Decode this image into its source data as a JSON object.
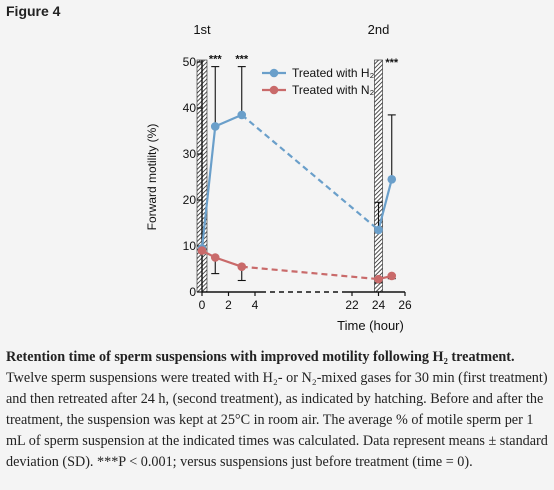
{
  "figure": {
    "label": "Figure 4"
  },
  "chart_data": {
    "type": "line",
    "xlabel": "Time (hour)",
    "ylabel": "Forward motility (%)",
    "ylim": [
      0,
      50
    ],
    "yticks": [
      0,
      10,
      20,
      30,
      40,
      50
    ],
    "xticks": [
      "0",
      "2",
      "4",
      "22",
      "24",
      "26"
    ],
    "phase_labels": [
      "1st",
      "2nd"
    ],
    "legend": [
      "Treated with H₂",
      "Treated with N₂"
    ],
    "legend_position": "top-right",
    "significance": "***",
    "colors": {
      "h2": "#6a9fca",
      "n2": "#c96a6a",
      "axis": "#111111"
    },
    "series": [
      {
        "name": "Treated with H₂",
        "x": [
          0,
          1,
          3,
          24,
          25
        ],
        "y": [
          9.5,
          36,
          38.5,
          13.5,
          24.5
        ],
        "error": [
          null,
          13,
          10.5,
          6,
          14
        ]
      },
      {
        "name": "Treated with N₂",
        "x": [
          0,
          1,
          3,
          24,
          25
        ],
        "y": [
          9,
          7.5,
          5.5,
          2.8,
          3.5
        ],
        "error": [
          null,
          3.5,
          3,
          0.8,
          0.6
        ]
      }
    ],
    "significant_points_h2": [
      1,
      3,
      25
    ]
  },
  "caption": {
    "title": "Retention time of sperm suspensions with improved motility following H₂ treatment.",
    "body": "Twelve sperm suspensions were treated with H₂- or N₂-mixed gases for 30 min (first treatment) and then retreated after 24 h, (second treatment), as indicated by hatching. Before and after the treatment, the suspension was kept at 25°C in room air. The average % of motile sperm per 1 mL of sperm suspension at the indicated times was calculated. Data represent means ± standard deviation (SD). ***P < 0.001; versus suspensions just before treatment (time = 0)."
  }
}
